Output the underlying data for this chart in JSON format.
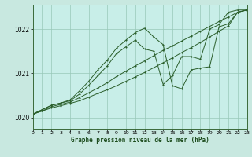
{
  "background_color": "#c8e8e0",
  "plot_bg_color": "#c8eee8",
  "grid_color": "#98c8b8",
  "line_color": "#2a5e2a",
  "xlabel": "Graphe pression niveau de la mer (hPa)",
  "xlim": [
    0,
    23
  ],
  "ylim": [
    1019.75,
    1022.55
  ],
  "yticks": [
    1020,
    1021,
    1022
  ],
  "xticks": [
    0,
    1,
    2,
    3,
    4,
    5,
    6,
    7,
    8,
    9,
    10,
    11,
    12,
    13,
    14,
    15,
    16,
    17,
    18,
    19,
    20,
    21,
    22,
    23
  ],
  "s1_x": [
    0,
    1,
    2,
    3,
    4,
    5,
    6,
    7,
    8,
    9,
    10,
    11,
    12,
    13,
    14,
    15,
    16,
    17,
    18,
    19,
    20,
    21,
    22,
    23
  ],
  "s1_y": [
    1020.08,
    1020.15,
    1020.22,
    1020.27,
    1020.32,
    1020.38,
    1020.46,
    1020.55,
    1020.63,
    1020.72,
    1020.82,
    1020.92,
    1021.02,
    1021.13,
    1021.24,
    1021.35,
    1021.47,
    1021.58,
    1021.7,
    1021.82,
    1021.95,
    1022.07,
    1022.38,
    1022.43
  ],
  "s2_x": [
    0,
    1,
    2,
    3,
    4,
    5,
    6,
    7,
    8,
    9,
    10,
    11,
    12,
    13,
    14,
    15,
    16,
    17,
    18,
    19,
    20,
    21,
    22,
    23
  ],
  "s2_y": [
    1020.08,
    1020.15,
    1020.25,
    1020.3,
    1020.35,
    1020.45,
    1020.56,
    1020.67,
    1020.79,
    1020.93,
    1021.05,
    1021.17,
    1021.28,
    1021.4,
    1021.52,
    1021.62,
    1021.73,
    1021.84,
    1021.95,
    1022.06,
    1022.17,
    1022.27,
    1022.38,
    1022.43
  ],
  "s3_x": [
    0,
    1,
    2,
    3,
    4,
    5,
    6,
    7,
    8,
    9,
    10,
    11,
    12,
    13,
    14,
    15,
    16,
    17,
    18,
    19,
    20,
    21,
    22,
    23
  ],
  "s3_y": [
    1020.08,
    1020.18,
    1020.28,
    1020.33,
    1020.4,
    1020.6,
    1020.82,
    1021.08,
    1021.3,
    1021.57,
    1021.75,
    1021.92,
    1022.02,
    1021.82,
    1021.65,
    1020.72,
    1020.65,
    1021.08,
    1021.12,
    1021.15,
    1022.05,
    1022.12,
    1022.38,
    1022.43
  ],
  "s4_x": [
    0,
    1,
    2,
    3,
    4,
    5,
    6,
    7,
    8,
    9,
    10,
    11,
    12,
    13,
    14,
    15,
    16,
    17,
    18,
    19,
    20,
    21,
    22,
    23
  ],
  "s4_y": [
    1020.08,
    1020.18,
    1020.28,
    1020.33,
    1020.38,
    1020.53,
    1020.73,
    1020.95,
    1021.17,
    1021.45,
    1021.6,
    1021.75,
    1021.55,
    1021.5,
    1020.75,
    1020.95,
    1021.38,
    1021.38,
    1021.32,
    1022.0,
    1022.1,
    1022.38,
    1022.43,
    1022.43
  ]
}
